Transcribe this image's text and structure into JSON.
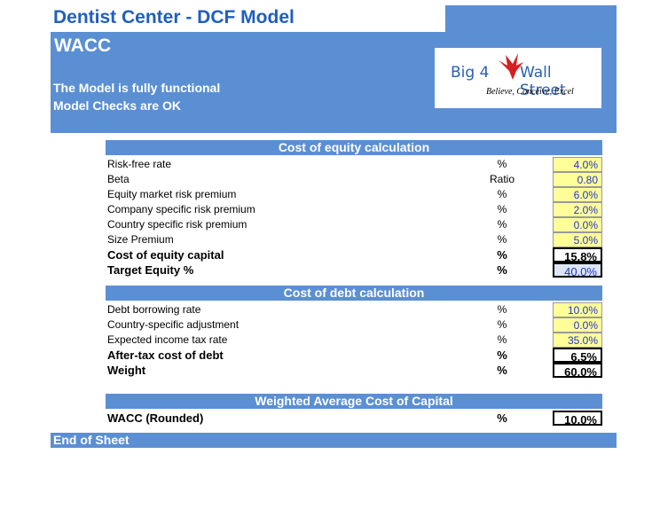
{
  "title": "Dentist Center - DCF Model",
  "sheet_name": "WACC",
  "status": [
    "The Model is fully functional",
    "Model Checks are OK"
  ],
  "logo": {
    "left": "Big 4",
    "right": "Wall Street",
    "tagline": "Believe, Conceive, Excel"
  },
  "equity": {
    "header": "Cost of equity calculation",
    "rows": [
      {
        "label": "Risk-free rate",
        "unit": "%",
        "value": "4.0%"
      },
      {
        "label": "Beta",
        "unit": "Ratio",
        "value": "0.80"
      },
      {
        "label": "Equity market risk premium",
        "unit": "%",
        "value": "6.0%"
      },
      {
        "label": "Company specific risk premium",
        "unit": "%",
        "value": "2.0%"
      },
      {
        "label": "Country specific risk premium",
        "unit": "%",
        "value": "0.0%"
      },
      {
        "label": "Size Premium",
        "unit": "%",
        "value": "5.0%"
      },
      {
        "label": "Cost of equity capital",
        "unit": "%",
        "value": "15.8%"
      },
      {
        "label": "Target Equity %",
        "unit": "%",
        "value": "40.0%"
      }
    ]
  },
  "debt": {
    "header": "Cost of debt calculation",
    "rows": [
      {
        "label": "Debt borrowing rate",
        "unit": "%",
        "value": "10.0%"
      },
      {
        "label": "Country-specific adjustment",
        "unit": "%",
        "value": "0.0%"
      },
      {
        "label": "Expected income tax rate",
        "unit": "%",
        "value": "35.0%"
      },
      {
        "label": "After-tax cost of debt",
        "unit": "%",
        "value": "6.5%"
      },
      {
        "label": "Weight",
        "unit": "%",
        "value": "60.0%"
      }
    ]
  },
  "wacc": {
    "header": "Weighted Average Cost of Capital",
    "label": "WACC (Rounded)",
    "unit": "%",
    "value": "10.0%"
  },
  "end_label": "End of Sheet",
  "colors": {
    "band": "#5b8fd3",
    "title": "#1f5fbf",
    "input_fill": "#ffff99",
    "input_text": "#2233cc"
  }
}
